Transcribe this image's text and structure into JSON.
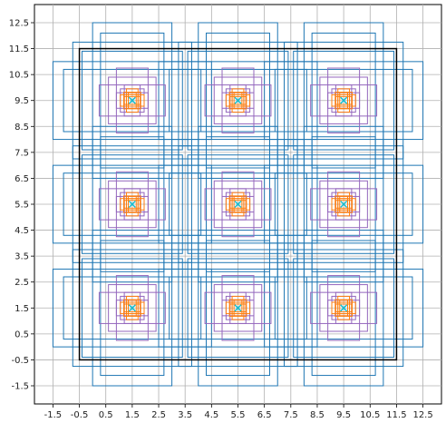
{
  "chart_data": {
    "type": "scatter",
    "title": "",
    "xlabel": "",
    "ylabel": "",
    "xlim": [
      -2.2,
      13.2
    ],
    "ylim": [
      -2.2,
      13.2
    ],
    "grid": true,
    "xticks": [
      "-1.5",
      "-0.5",
      "0.5",
      "1.5",
      "2.5",
      "3.5",
      "4.5",
      "5.5",
      "6.5",
      "7.5",
      "8.5",
      "9.5",
      "10.5",
      "11.5",
      "12.5"
    ],
    "yticks": [
      "-1.5",
      "-0.5",
      "0.5",
      "1.5",
      "2.5",
      "3.5",
      "4.5",
      "5.5",
      "6.5",
      "7.5",
      "8.5",
      "9.5",
      "10.5",
      "11.5",
      "12.5"
    ],
    "tick_values": [
      -1.5,
      -0.5,
      0.5,
      1.5,
      2.5,
      3.5,
      4.5,
      5.5,
      6.5,
      7.5,
      8.5,
      9.5,
      10.5,
      11.5,
      12.5
    ],
    "border": {
      "x": [
        -0.5,
        11.5
      ],
      "y": [
        -0.5,
        11.5
      ],
      "color": "#000000"
    },
    "centers": {
      "x": [
        1.5,
        5.5,
        9.5,
        1.5,
        5.5,
        9.5,
        1.5,
        5.5,
        9.5
      ],
      "y": [
        1.5,
        1.5,
        1.5,
        5.5,
        5.5,
        5.5,
        9.5,
        9.5,
        9.5
      ],
      "marker": "x",
      "color": "#17becf"
    },
    "boxes": [
      {
        "color": "#1f77b4",
        "extents": [
          [
            2.25,
            2.25
          ],
          [
            1.5,
            3.0
          ],
          [
            3.0,
            1.5
          ],
          [
            1.9,
            1.9
          ],
          [
            1.2,
            2.6
          ],
          [
            2.6,
            1.2
          ]
        ]
      },
      {
        "color": "#9467bd",
        "extents": [
          [
            0.9,
            0.9
          ],
          [
            0.6,
            1.25
          ],
          [
            1.25,
            0.6
          ],
          [
            0.45,
            0.45
          ],
          [
            0.3,
            0.6
          ],
          [
            0.6,
            0.3
          ]
        ]
      },
      {
        "color": "#ff7f0e",
        "extents": [
          [
            0.32,
            0.32
          ],
          [
            0.22,
            0.45
          ],
          [
            0.45,
            0.22
          ],
          [
            0.22,
            0.22
          ],
          [
            0.15,
            0.3
          ],
          [
            0.3,
            0.15
          ]
        ]
      }
    ]
  }
}
